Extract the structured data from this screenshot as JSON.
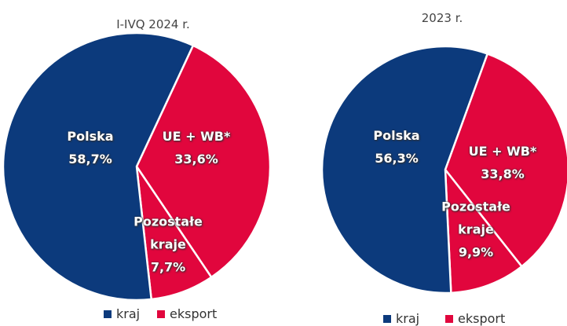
{
  "chart_data": [
    {
      "type": "pie",
      "title": "I-IVQ 2024 r.",
      "categories": [
        "UE + WB*",
        "Pozostałe kraje",
        "Polska"
      ],
      "values": [
        33.6,
        7.7,
        58.7
      ],
      "value_labels": [
        "33,6%",
        "7,7%",
        "58,7%"
      ],
      "colors": [
        "#e1063d",
        "#e1063d",
        "#0c3a7c"
      ],
      "legend": [
        {
          "name": "kraj",
          "color": "#0c3a7c"
        },
        {
          "name": "eksport",
          "color": "#e1063d"
        }
      ]
    },
    {
      "type": "pie",
      "title": "2023 r.",
      "categories": [
        "UE + WB*",
        "Pozostałe kraje",
        "Polska"
      ],
      "values": [
        33.8,
        9.9,
        56.3
      ],
      "value_labels": [
        "33,8%",
        "9,9%",
        "56,3%"
      ],
      "colors": [
        "#e1063d",
        "#e1063d",
        "#0c3a7c"
      ],
      "legend": [
        {
          "name": "kraj",
          "color": "#0c3a7c"
        },
        {
          "name": "eksport",
          "color": "#e1063d"
        }
      ]
    }
  ]
}
